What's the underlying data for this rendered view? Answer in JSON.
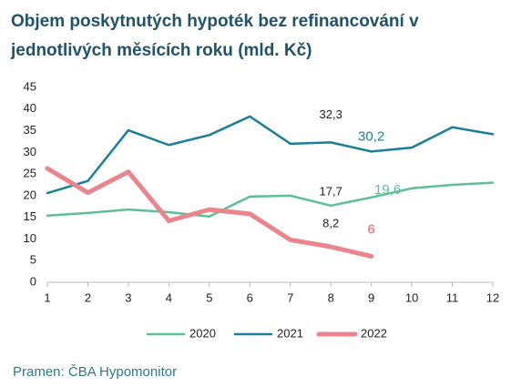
{
  "chart_data": {
    "type": "line",
    "title": "Objem poskytnutých hypoték bez refinancování v jednotlivých měsících roku (mld. Kč)",
    "source": "Pramen: ČBA Hypomonitor",
    "x": [
      1,
      2,
      3,
      4,
      5,
      6,
      7,
      8,
      9,
      10,
      11,
      12
    ],
    "xlim": [
      1,
      12
    ],
    "xticks": [
      1,
      2,
      3,
      4,
      5,
      6,
      7,
      8,
      9,
      10,
      11,
      12
    ],
    "ylim": [
      0,
      45
    ],
    "yticks": [
      0,
      5,
      10,
      15,
      20,
      25,
      30,
      35,
      40,
      45
    ],
    "grid": false,
    "legend": "bottom",
    "series": [
      {
        "name": "2020",
        "color": "#5dbf96",
        "width": 2.5,
        "values": [
          15.4,
          16,
          16.8,
          16.2,
          15.2,
          19.8,
          20,
          17.7,
          19.6,
          21.7,
          22.5,
          23.0
        ],
        "value_labels": [
          null,
          null,
          null,
          null,
          null,
          null,
          null,
          "17,7",
          "19,6",
          null,
          null,
          null
        ]
      },
      {
        "name": "2021",
        "color": "#1a7f96",
        "width": 2.5,
        "values": [
          20.6,
          23.4,
          35.1,
          31.7,
          34,
          38.3,
          32,
          32.3,
          30.2,
          31.1,
          35.8,
          34.2
        ],
        "value_labels": [
          null,
          null,
          null,
          null,
          null,
          null,
          null,
          "32,3",
          "30,2",
          null,
          null,
          null
        ]
      },
      {
        "name": "2022",
        "color": "#ea858d",
        "width": 5,
        "values": [
          26.3,
          20.7,
          25.5,
          14.2,
          16.8,
          15.8,
          9.8,
          8.2,
          6,
          null,
          null,
          null
        ],
        "value_labels": [
          null,
          null,
          null,
          null,
          null,
          null,
          null,
          "8,2",
          "6",
          null,
          null,
          null
        ]
      }
    ]
  }
}
